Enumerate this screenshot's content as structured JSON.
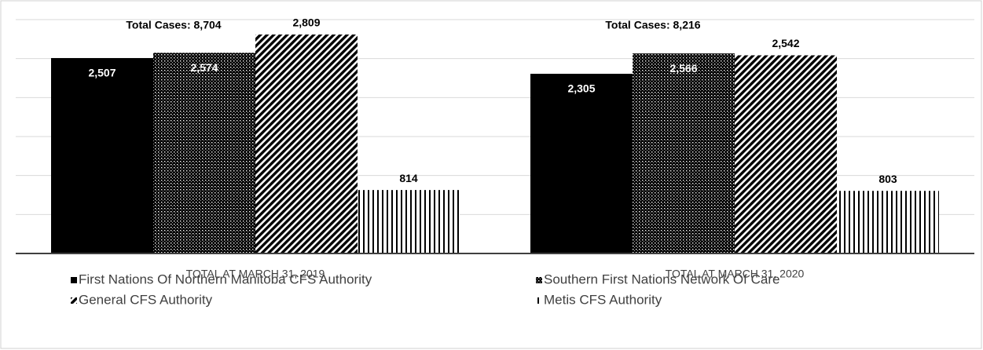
{
  "chart_data": {
    "type": "bar",
    "categories": [
      "TOTAL  AT MARCH 31, 2019",
      "TOTAL  AT MARCH 31, 2020"
    ],
    "annotations": [
      "Total Cases: 8,704",
      "Total Cases: 8,216"
    ],
    "series": [
      {
        "name": "First Nations Of Northern Manitoba CFS Authority",
        "color": "#000000",
        "pattern": "solid",
        "values": [
          2507,
          2305
        ],
        "value_labels": [
          "2,507",
          "2,305"
        ]
      },
      {
        "name": "Southern First Nations Network Of Care",
        "color": "#000000",
        "pattern": "dots",
        "values": [
          2574,
          2566
        ],
        "value_labels": [
          "2,574",
          "2,566"
        ]
      },
      {
        "name": "General CFS Authority",
        "color": "#000000",
        "pattern": "diagonal",
        "values": [
          2809,
          2542
        ],
        "value_labels": [
          "2,809",
          "2,542"
        ]
      },
      {
        "name": "Metis CFS Authority",
        "color": "#000000",
        "pattern": "vertical",
        "values": [
          814,
          803
        ],
        "value_labels": [
          "814",
          "803"
        ]
      }
    ],
    "ylim": [
      0,
      3000
    ],
    "yticks": [
      0,
      500,
      1000,
      1500,
      2000,
      2500,
      3000
    ],
    "grid": true
  }
}
